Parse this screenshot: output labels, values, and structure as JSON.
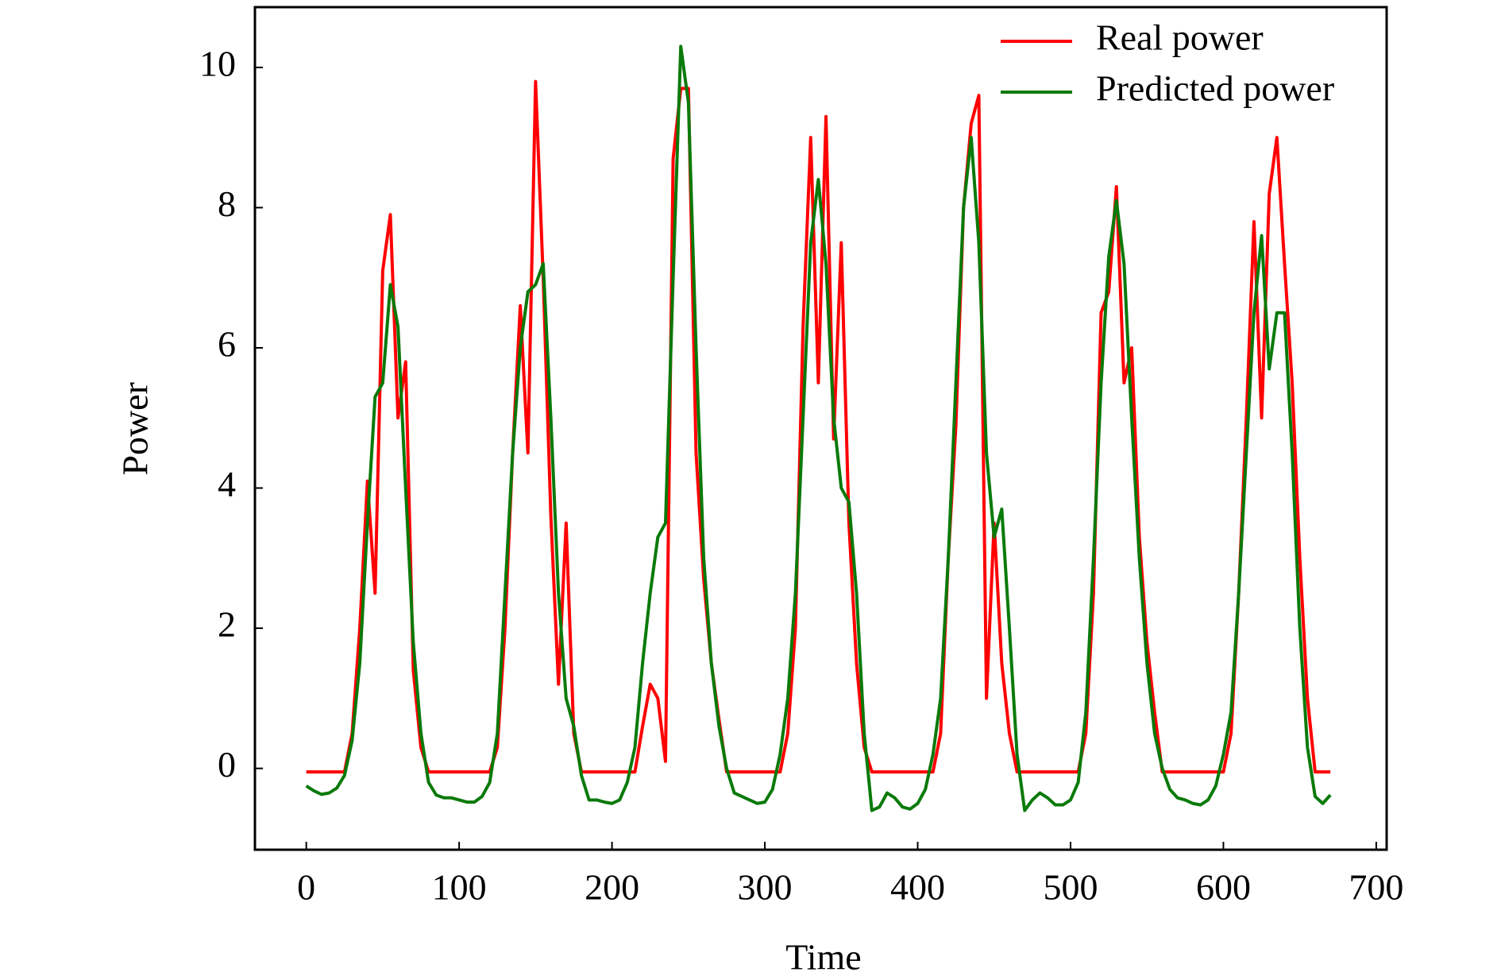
{
  "chart_data": {
    "type": "line",
    "xlabel": "Time",
    "ylabel": "Power",
    "xlim": [
      -33.6,
      706.8
    ],
    "ylim": [
      -1.16,
      10.86
    ],
    "xticks": [
      0,
      100,
      200,
      300,
      400,
      500,
      600,
      700
    ],
    "yticks": [
      0,
      2,
      4,
      6,
      8,
      10
    ],
    "legend": "upper right",
    "x": [
      0,
      5,
      10,
      15,
      20,
      25,
      30,
      35,
      40,
      45,
      50,
      55,
      60,
      65,
      70,
      75,
      80,
      85,
      90,
      95,
      100,
      105,
      110,
      115,
      120,
      125,
      130,
      135,
      140,
      145,
      150,
      155,
      160,
      165,
      170,
      175,
      180,
      185,
      190,
      195,
      200,
      205,
      210,
      215,
      220,
      225,
      230,
      235,
      240,
      245,
      250,
      255,
      260,
      265,
      270,
      275,
      280,
      285,
      290,
      295,
      300,
      305,
      310,
      315,
      320,
      325,
      330,
      335,
      340,
      345,
      350,
      355,
      360,
      365,
      370,
      375,
      380,
      385,
      390,
      395,
      400,
      405,
      410,
      415,
      420,
      425,
      430,
      435,
      440,
      445,
      450,
      455,
      460,
      465,
      470,
      475,
      480,
      485,
      490,
      495,
      500,
      505,
      510,
      515,
      520,
      525,
      530,
      535,
      540,
      545,
      550,
      555,
      560,
      565,
      570,
      575,
      580,
      585,
      590,
      595,
      600,
      605,
      610,
      615,
      620,
      625,
      630,
      635,
      640,
      645,
      650,
      655,
      660,
      665,
      670
    ],
    "series": [
      {
        "name": "Real power",
        "color": "#ff0000",
        "values": [
          -0.05,
          -0.05,
          -0.05,
          -0.05,
          -0.05,
          -0.05,
          0.5,
          2,
          4.1,
          2.5,
          7.1,
          7.9,
          5,
          5.8,
          1.4,
          0.3,
          -0.05,
          -0.05,
          -0.05,
          -0.05,
          -0.05,
          -0.05,
          -0.05,
          -0.05,
          -0.05,
          0.3,
          2,
          4.5,
          6.6,
          4.5,
          9.8,
          7,
          3.6,
          1.2,
          3.5,
          0.5,
          -0.05,
          -0.05,
          -0.05,
          -0.05,
          -0.05,
          -0.05,
          -0.05,
          -0.05,
          0.6,
          1.2,
          1,
          0.1,
          8.7,
          9.7,
          9.7,
          4.5,
          2.7,
          1.5,
          0.7,
          -0.05,
          -0.05,
          -0.05,
          -0.05,
          -0.05,
          -0.05,
          -0.05,
          -0.05,
          0.5,
          2,
          6.3,
          9,
          5.5,
          9.3,
          4.7,
          7.5,
          3.5,
          1.5,
          0.3,
          -0.05,
          -0.05,
          -0.05,
          -0.05,
          -0.05,
          -0.05,
          -0.05,
          -0.05,
          -0.05,
          0.5,
          3,
          4.9,
          8,
          9.2,
          9.6,
          1,
          3.5,
          1.5,
          0.5,
          -0.05,
          -0.05,
          -0.05,
          -0.05,
          -0.05,
          -0.05,
          -0.05,
          -0.05,
          -0.05,
          0.5,
          2.5,
          6.5,
          6.8,
          8.3,
          5.5,
          6,
          3.3,
          1.8,
          0.8,
          -0.05,
          -0.05,
          -0.05,
          -0.05,
          -0.05,
          -0.05,
          -0.05,
          -0.05,
          -0.05,
          0.5,
          2.5,
          5,
          7.8,
          5,
          8.2,
          9,
          7.2,
          5.5,
          3,
          1,
          -0.05,
          -0.05,
          -0.05
        ]
      },
      {
        "name": "Predicted power",
        "color": "#0a7a0a",
        "values": [
          -0.25,
          -0.32,
          -0.37,
          -0.35,
          -0.28,
          -0.1,
          0.4,
          1.5,
          3.5,
          5.3,
          5.5,
          6.9,
          6.3,
          4,
          1.8,
          0.5,
          -0.2,
          -0.38,
          -0.42,
          -0.42,
          -0.45,
          -0.48,
          -0.48,
          -0.4,
          -0.2,
          0.5,
          2.5,
          4.5,
          6,
          6.8,
          6.9,
          7.2,
          5,
          2.5,
          1,
          0.6,
          -0.1,
          -0.45,
          -0.45,
          -0.48,
          -0.5,
          -0.45,
          -0.2,
          0.3,
          1.5,
          2.5,
          3.3,
          3.5,
          7,
          10.3,
          9.5,
          6,
          3,
          1.5,
          0.6,
          0,
          -0.35,
          -0.4,
          -0.45,
          -0.5,
          -0.48,
          -0.3,
          0.2,
          1,
          2.5,
          5,
          7.5,
          8.4,
          7.2,
          5,
          4,
          3.8,
          2.5,
          0.5,
          -0.6,
          -0.55,
          -0.35,
          -0.42,
          -0.55,
          -0.58,
          -0.5,
          -0.3,
          0.2,
          1,
          3,
          5.5,
          8,
          9,
          7.5,
          4.5,
          3.3,
          3.7,
          2,
          0.2,
          -0.6,
          -0.45,
          -0.35,
          -0.42,
          -0.52,
          -0.52,
          -0.45,
          -0.2,
          0.8,
          3,
          5.5,
          7.3,
          8.1,
          7.2,
          5,
          3,
          1.5,
          0.5,
          0,
          -0.3,
          -0.42,
          -0.45,
          -0.5,
          -0.52,
          -0.45,
          -0.25,
          0.2,
          0.8,
          2.5,
          4.5,
          6.5,
          7.6,
          5.7,
          6.5,
          6.5,
          4.5,
          2,
          0.3,
          -0.4,
          -0.5,
          -0.38
        ]
      }
    ]
  }
}
